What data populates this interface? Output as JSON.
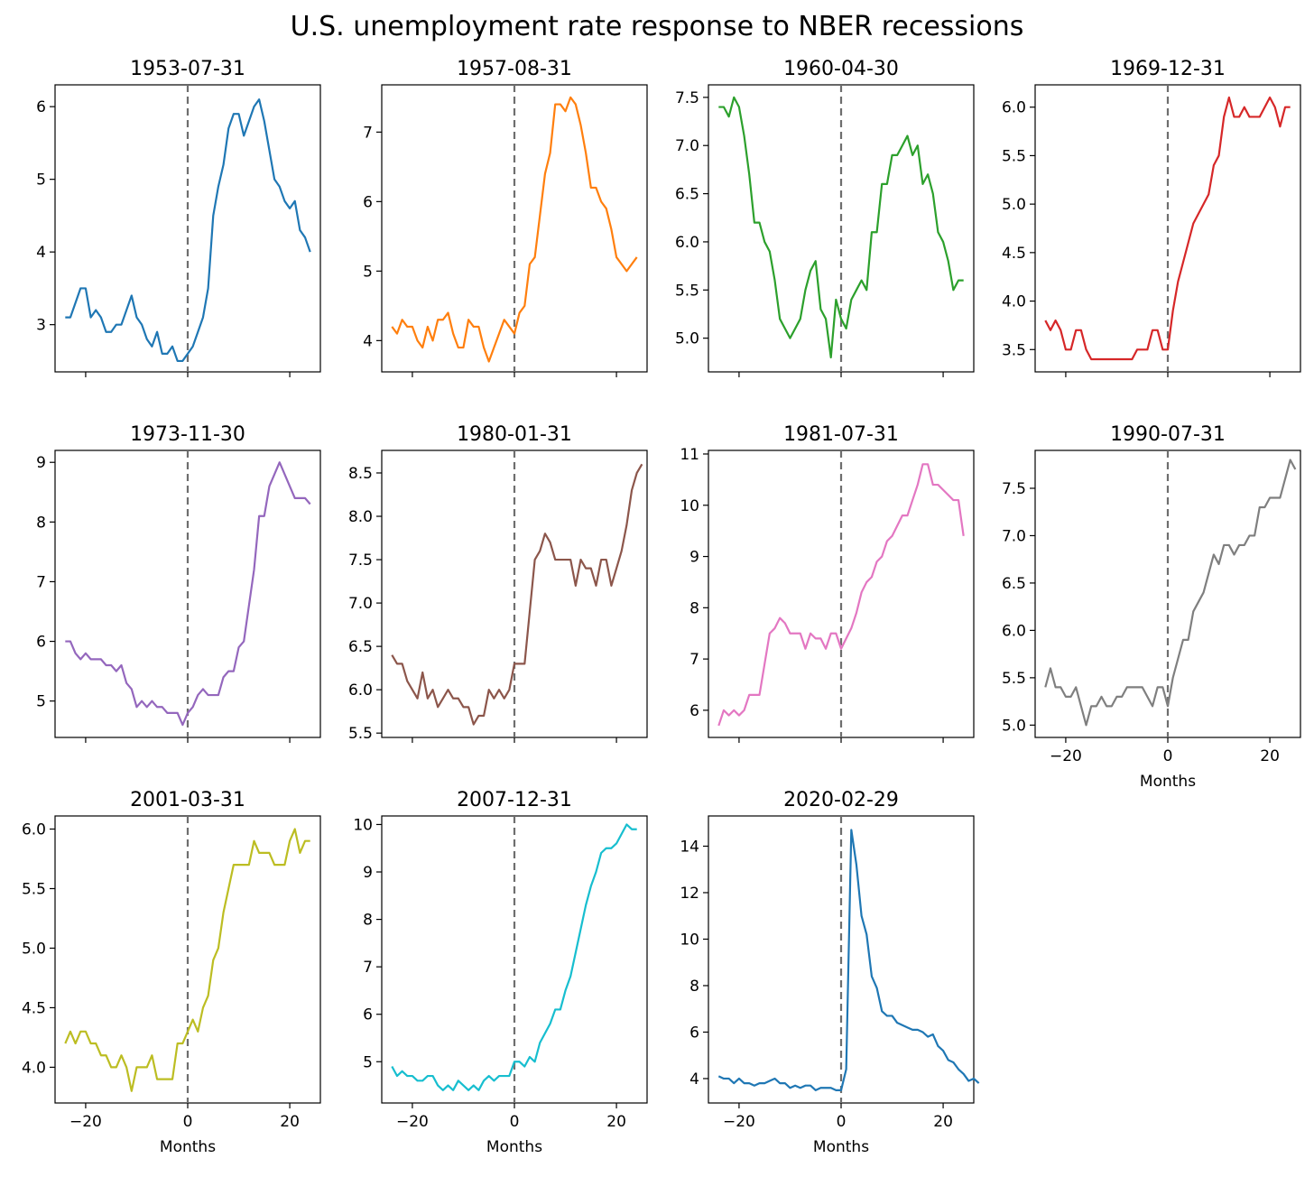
{
  "chart_data": {
    "type": "line",
    "title": "U.S. unemployment rate response  to NBER recessions",
    "xlabel": "Months",
    "xlim": [
      -26,
      26
    ],
    "xticks": [
      -20,
      0,
      20
    ],
    "x_start": -24,
    "event_marker": 0,
    "panels": [
      {
        "title": "1953-07-31",
        "color": "#1f77b4",
        "ylim": [
          2.35,
          6.3
        ],
        "yticks": [
          3,
          4,
          5,
          6
        ],
        "ytick_labels": [
          "3",
          "4",
          "5",
          "6"
        ],
        "values": [
          3.1,
          3.1,
          3.3,
          3.5,
          3.5,
          3.1,
          3.2,
          3.1,
          2.9,
          2.9,
          3.0,
          3.0,
          3.2,
          3.4,
          3.1,
          3.0,
          2.8,
          2.7,
          2.9,
          2.6,
          2.6,
          2.7,
          2.5,
          2.5,
          2.6,
          2.7,
          2.9,
          3.1,
          3.5,
          4.5,
          4.9,
          5.2,
          5.7,
          5.9,
          5.9,
          5.6,
          5.8,
          6.0,
          6.1,
          5.8,
          5.4,
          5.0,
          4.9,
          4.7,
          4.6,
          4.7,
          4.3,
          4.2,
          4.0
        ]
      },
      {
        "title": "1957-08-31",
        "color": "#ff7f0e",
        "ylim": [
          3.55,
          7.68
        ],
        "yticks": [
          4,
          5,
          6,
          7
        ],
        "ytick_labels": [
          "4",
          "5",
          "6",
          "7"
        ],
        "values": [
          4.2,
          4.1,
          4.3,
          4.2,
          4.2,
          4.0,
          3.9,
          4.2,
          4.0,
          4.3,
          4.3,
          4.4,
          4.1,
          3.9,
          3.9,
          4.3,
          4.2,
          4.2,
          3.9,
          3.7,
          3.9,
          4.1,
          4.3,
          4.2,
          4.1,
          4.4,
          4.5,
          5.1,
          5.2,
          5.8,
          6.4,
          6.7,
          7.4,
          7.4,
          7.3,
          7.5,
          7.4,
          7.1,
          6.7,
          6.2,
          6.2,
          6.0,
          5.9,
          5.6,
          5.2,
          5.1,
          5.0,
          5.1,
          5.2
        ]
      },
      {
        "title": "1960-04-30",
        "color": "#2ca02c",
        "ylim": [
          4.65,
          7.63
        ],
        "yticks": [
          5.0,
          5.5,
          6.0,
          6.5,
          7.0,
          7.5
        ],
        "ytick_labels": [
          "5.0",
          "5.5",
          "6.0",
          "6.5",
          "7.0",
          "7.5"
        ],
        "values": [
          7.4,
          7.4,
          7.3,
          7.5,
          7.4,
          7.1,
          6.7,
          6.2,
          6.2,
          6.0,
          5.9,
          5.6,
          5.2,
          5.1,
          5.0,
          5.1,
          5.2,
          5.5,
          5.7,
          5.8,
          5.3,
          5.2,
          4.8,
          5.4,
          5.2,
          5.1,
          5.4,
          5.5,
          5.6,
          5.5,
          6.1,
          6.1,
          6.6,
          6.6,
          6.9,
          6.9,
          7.0,
          7.1,
          6.9,
          7.0,
          6.6,
          6.7,
          6.5,
          6.1,
          6.0,
          5.8,
          5.5,
          5.6,
          5.6
        ]
      },
      {
        "title": "1969-12-31",
        "color": "#d62728",
        "ylim": [
          3.27,
          6.23
        ],
        "yticks": [
          3.5,
          4.0,
          4.5,
          5.0,
          5.5,
          6.0
        ],
        "ytick_labels": [
          "3.5",
          "4.0",
          "4.5",
          "5.0",
          "5.5",
          "6.0"
        ],
        "values": [
          3.8,
          3.7,
          3.8,
          3.7,
          3.5,
          3.5,
          3.7,
          3.7,
          3.5,
          3.4,
          3.4,
          3.4,
          3.4,
          3.4,
          3.4,
          3.4,
          3.4,
          3.4,
          3.5,
          3.5,
          3.5,
          3.7,
          3.7,
          3.5,
          3.5,
          3.9,
          4.2,
          4.4,
          4.6,
          4.8,
          4.9,
          5.0,
          5.1,
          5.4,
          5.5,
          5.9,
          6.1,
          5.9,
          5.9,
          6.0,
          5.9,
          5.9,
          5.9,
          6.0,
          6.1,
          6.0,
          5.8,
          6.0,
          6.0
        ]
      },
      {
        "title": "1973-11-30",
        "color": "#9467bd",
        "ylim": [
          4.39,
          9.2
        ],
        "yticks": [
          5,
          6,
          7,
          8,
          9
        ],
        "ytick_labels": [
          "5",
          "6",
          "7",
          "8",
          "9"
        ],
        "values": [
          6.0,
          6.0,
          5.8,
          5.7,
          5.8,
          5.7,
          5.7,
          5.7,
          5.6,
          5.6,
          5.5,
          5.6,
          5.3,
          5.2,
          4.9,
          5.0,
          4.9,
          5.0,
          4.9,
          4.9,
          4.8,
          4.8,
          4.8,
          4.6,
          4.8,
          4.9,
          5.1,
          5.2,
          5.1,
          5.1,
          5.1,
          5.4,
          5.5,
          5.5,
          5.9,
          6.0,
          6.6,
          7.2,
          8.1,
          8.1,
          8.6,
          8.8,
          9.0,
          8.8,
          8.6,
          8.4,
          8.4,
          8.4,
          8.3
        ]
      },
      {
        "title": "1980-01-31",
        "color": "#8c564b",
        "ylim": [
          5.45,
          8.76
        ],
        "yticks": [
          5.5,
          6.0,
          6.5,
          7.0,
          7.5,
          8.0,
          8.5
        ],
        "ytick_labels": [
          "5.5",
          "6.0",
          "6.5",
          "7.0",
          "7.5",
          "8.0",
          "8.5"
        ],
        "values": [
          6.4,
          6.3,
          6.3,
          6.1,
          6.0,
          5.9,
          6.2,
          5.9,
          6.0,
          5.8,
          5.9,
          6.0,
          5.9,
          5.9,
          5.8,
          5.8,
          5.6,
          5.7,
          5.7,
          6.0,
          5.9,
          6.0,
          5.9,
          6.0,
          6.3,
          6.3,
          6.3,
          6.9,
          7.5,
          7.6,
          7.8,
          7.7,
          7.5,
          7.5,
          7.5,
          7.5,
          7.2,
          7.5,
          7.4,
          7.4,
          7.2,
          7.5,
          7.5,
          7.2,
          7.4,
          7.6,
          7.9,
          8.3,
          8.5,
          8.6
        ]
      },
      {
        "title": "1981-07-31",
        "color": "#e377c2",
        "ylim": [
          5.47,
          11.07
        ],
        "yticks": [
          6,
          7,
          8,
          9,
          10,
          11
        ],
        "ytick_labels": [
          "6",
          "7",
          "8",
          "9",
          "10",
          "11"
        ],
        "values": [
          5.7,
          6.0,
          5.9,
          6.0,
          5.9,
          6.0,
          6.3,
          6.3,
          6.3,
          6.9,
          7.5,
          7.6,
          7.8,
          7.7,
          7.5,
          7.5,
          7.5,
          7.2,
          7.5,
          7.4,
          7.4,
          7.2,
          7.5,
          7.5,
          7.2,
          7.4,
          7.6,
          7.9,
          8.3,
          8.5,
          8.6,
          8.9,
          9.0,
          9.3,
          9.4,
          9.6,
          9.8,
          9.8,
          10.1,
          10.4,
          10.8,
          10.8,
          10.4,
          10.4,
          10.3,
          10.2,
          10.1,
          10.1,
          9.4
        ]
      },
      {
        "title": "1990-07-31",
        "color": "#7f7f7f",
        "ylim": [
          4.87,
          7.9
        ],
        "yticks": [
          5.0,
          5.5,
          6.0,
          6.5,
          7.0,
          7.5
        ],
        "ytick_labels": [
          "5.0",
          "5.5",
          "6.0",
          "6.5",
          "7.0",
          "7.5"
        ],
        "values": [
          5.4,
          5.6,
          5.4,
          5.4,
          5.3,
          5.3,
          5.4,
          5.2,
          5.0,
          5.2,
          5.2,
          5.3,
          5.2,
          5.2,
          5.3,
          5.3,
          5.4,
          5.4,
          5.4,
          5.4,
          5.3,
          5.2,
          5.4,
          5.4,
          5.2,
          5.5,
          5.7,
          5.9,
          5.9,
          6.2,
          6.3,
          6.4,
          6.6,
          6.8,
          6.7,
          6.9,
          6.9,
          6.8,
          6.9,
          6.9,
          7.0,
          7.0,
          7.3,
          7.3,
          7.4,
          7.4,
          7.4,
          7.6,
          7.8,
          7.7
        ]
      },
      {
        "title": "2001-03-31",
        "color": "#bcbd22",
        "ylim": [
          3.7,
          6.11
        ],
        "yticks": [
          4.0,
          4.5,
          5.0,
          5.5,
          6.0
        ],
        "ytick_labels": [
          "4.0",
          "4.5",
          "5.0",
          "5.5",
          "6.0"
        ],
        "values": [
          4.2,
          4.3,
          4.2,
          4.3,
          4.3,
          4.2,
          4.2,
          4.1,
          4.1,
          4.0,
          4.0,
          4.1,
          4.0,
          3.8,
          4.0,
          4.0,
          4.0,
          4.1,
          3.9,
          3.9,
          3.9,
          3.9,
          4.2,
          4.2,
          4.3,
          4.4,
          4.3,
          4.5,
          4.6,
          4.9,
          5.0,
          5.3,
          5.5,
          5.7,
          5.7,
          5.7,
          5.7,
          5.9,
          5.8,
          5.8,
          5.8,
          5.7,
          5.7,
          5.7,
          5.9,
          6.0,
          5.8,
          5.9,
          5.9
        ]
      },
      {
        "title": "2007-12-31",
        "color": "#17becf",
        "ylim": [
          4.13,
          10.18
        ],
        "yticks": [
          5,
          6,
          7,
          8,
          9,
          10
        ],
        "ytick_labels": [
          "5",
          "6",
          "7",
          "8",
          "9",
          "10"
        ],
        "values": [
          4.9,
          4.7,
          4.8,
          4.7,
          4.7,
          4.6,
          4.6,
          4.7,
          4.7,
          4.5,
          4.4,
          4.5,
          4.4,
          4.6,
          4.5,
          4.4,
          4.5,
          4.4,
          4.6,
          4.7,
          4.6,
          4.7,
          4.7,
          4.7,
          5.0,
          5.0,
          4.9,
          5.1,
          5.0,
          5.4,
          5.6,
          5.8,
          6.1,
          6.1,
          6.5,
          6.8,
          7.3,
          7.8,
          8.3,
          8.7,
          9.0,
          9.4,
          9.5,
          9.5,
          9.6,
          9.8,
          10.0,
          9.9,
          9.9
        ]
      },
      {
        "title": "2020-02-29",
        "color": "#1f77b4",
        "ylim": [
          2.95,
          15.3
        ],
        "yticks": [
          4,
          6,
          8,
          10,
          12,
          14
        ],
        "ytick_labels": [
          "4",
          "6",
          "8",
          "10",
          "12",
          "14"
        ],
        "values": [
          4.1,
          4.0,
          4.0,
          3.8,
          4.0,
          3.8,
          3.8,
          3.7,
          3.8,
          3.8,
          3.9,
          4.0,
          3.8,
          3.8,
          3.6,
          3.7,
          3.6,
          3.7,
          3.7,
          3.5,
          3.6,
          3.6,
          3.6,
          3.5,
          3.5,
          4.4,
          14.7,
          13.2,
          11.0,
          10.2,
          8.4,
          7.9,
          6.9,
          6.7,
          6.7,
          6.4,
          6.3,
          6.2,
          6.1,
          6.1,
          6.0,
          5.8,
          5.9,
          5.4,
          5.2,
          4.8,
          4.7,
          4.4,
          4.2,
          3.9,
          4.0,
          3.8
        ]
      }
    ]
  }
}
